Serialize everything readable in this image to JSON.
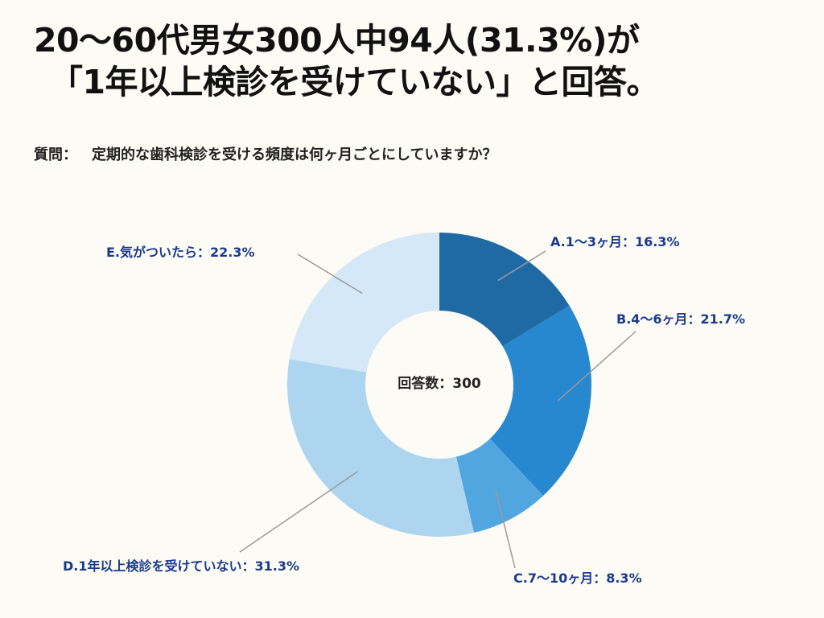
{
  "headline": {
    "line1": "20～60代男女300人中94人(31.3%)が",
    "line2": "「1年以上検診を受けていない」と回答。"
  },
  "question": {
    "label": "質問：",
    "text": "定期的な歯科検診を受ける頻度は何ヶ月ごとにしていますか？"
  },
  "chart_data": {
    "type": "pie",
    "variant": "donut",
    "center_label": "回答数：300",
    "total": 300,
    "categories": [
      "A.1～3ヶ月",
      "B.4～6ヶ月",
      "C.7～10ヶ月",
      "D.1年以上検診を受けていない",
      "E.気がついたら"
    ],
    "values": [
      16.3,
      21.7,
      8.3,
      31.3,
      22.3
    ],
    "labels": [
      "A.1～3ヶ月：16.3%",
      "B.4～6ヶ月：21.7%",
      "C.7～10ヶ月：8.3%",
      "D.1年以上検診を受けていない：31.3%",
      "E.気がついたら：22.3%"
    ],
    "colors": [
      "#1f6aa5",
      "#2788d0",
      "#52a6e0",
      "#aed5f0",
      "#d4e8f8"
    ],
    "label_color": "#1a3a8c",
    "leader_color": "#9a9a9a"
  }
}
